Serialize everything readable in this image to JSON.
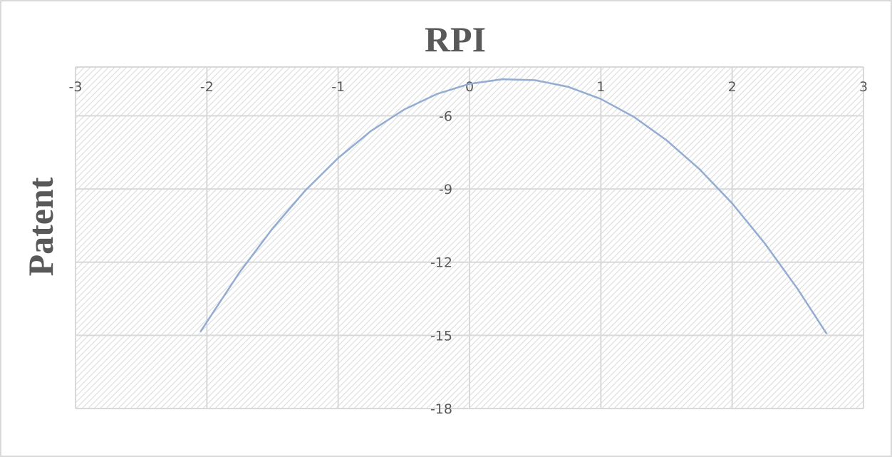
{
  "chart_data": {
    "type": "line",
    "title": "RPI",
    "y_label": "Patent",
    "x": [
      -2.05,
      -1.75,
      -1.5,
      -1.25,
      -1,
      -0.75,
      -0.5,
      -0.25,
      0,
      0.25,
      0.5,
      0.75,
      1,
      1.25,
      1.5,
      1.75,
      2,
      2.25,
      2.5,
      2.72
    ],
    "series": [
      {
        "color": "#93acd2",
        "values": [
          -14.86,
          -12.41,
          -10.62,
          -9.06,
          -7.73,
          -6.62,
          -5.75,
          -5.11,
          -4.69,
          -4.5,
          -4.54,
          -4.81,
          -5.31,
          -6.04,
          -7.0,
          -8.18,
          -9.59,
          -11.24,
          -13.11,
          -14.94
        ]
      }
    ],
    "xlim": [
      -3,
      3
    ],
    "xticks": [
      -3,
      -2,
      -1,
      0,
      1,
      2,
      3
    ],
    "ylim": [
      -18,
      -4
    ],
    "yticks": [
      -18,
      -15,
      -12,
      -9,
      -6
    ],
    "grid": true
  }
}
